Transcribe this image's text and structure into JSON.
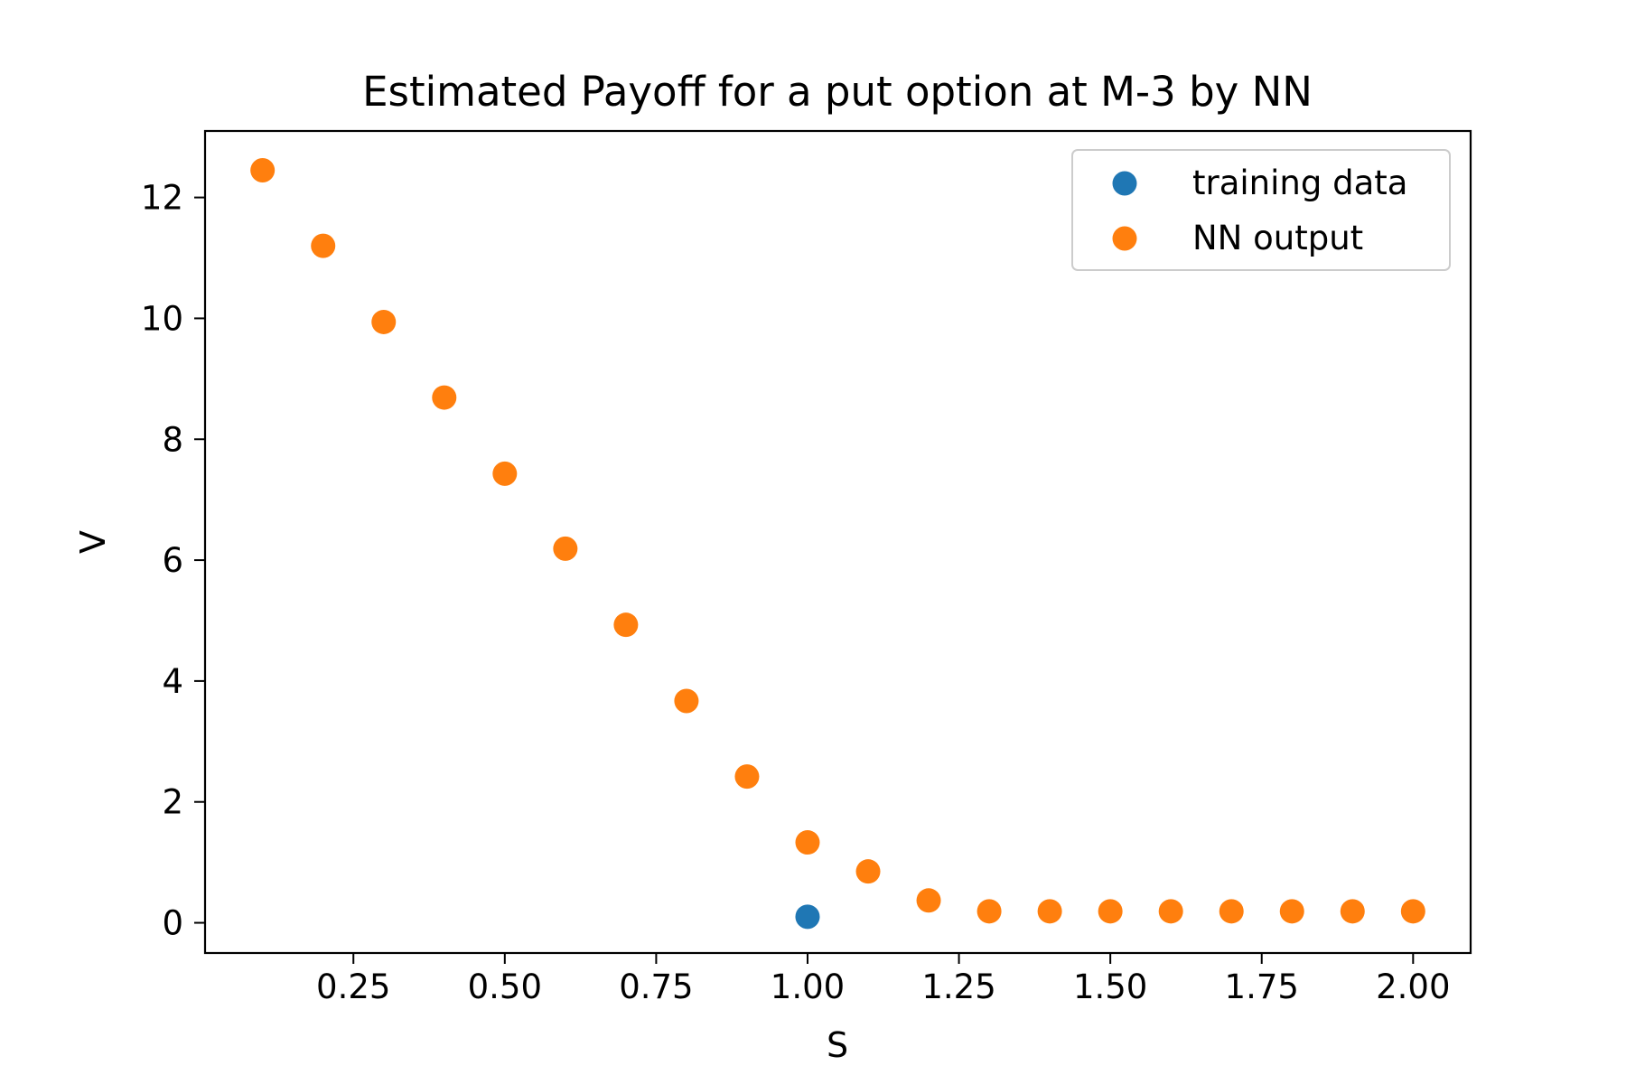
{
  "chart_data": {
    "type": "scatter",
    "title": "Estimated Payoff for a put option at M-3 by NN",
    "xlabel": "S",
    "ylabel": "V",
    "xlim": [
      0.005,
      2.095
    ],
    "ylim": [
      -0.5,
      13.1
    ],
    "xticks": [
      0.25,
      0.5,
      0.75,
      1.0,
      1.25,
      1.5,
      1.75,
      2.0
    ],
    "xtick_labels": [
      "0.25",
      "0.50",
      "0.75",
      "1.00",
      "1.25",
      "1.50",
      "1.75",
      "2.00"
    ],
    "yticks": [
      0,
      2,
      4,
      6,
      8,
      10,
      12
    ],
    "ytick_labels": [
      "0",
      "2",
      "4",
      "6",
      "8",
      "10",
      "12"
    ],
    "grid": false,
    "legend_position": "top-right",
    "series": [
      {
        "name": "training data",
        "color": "#1f77b4",
        "x": [
          1.0
        ],
        "y": [
          0.1
        ]
      },
      {
        "name": "NN output",
        "color": "#ff7f0e",
        "x": [
          0.1,
          0.2,
          0.3,
          0.4,
          0.5,
          0.6,
          0.7,
          0.8,
          0.9,
          1.0,
          1.1,
          1.2,
          1.3,
          1.4,
          1.5,
          1.6,
          1.7,
          1.8,
          1.9,
          2.0
        ],
        "y": [
          12.45,
          11.2,
          9.94,
          8.69,
          7.43,
          6.19,
          4.93,
          3.67,
          2.42,
          1.33,
          0.85,
          0.37,
          0.19,
          0.19,
          0.19,
          0.19,
          0.19,
          0.19,
          0.19,
          0.19
        ]
      }
    ]
  }
}
